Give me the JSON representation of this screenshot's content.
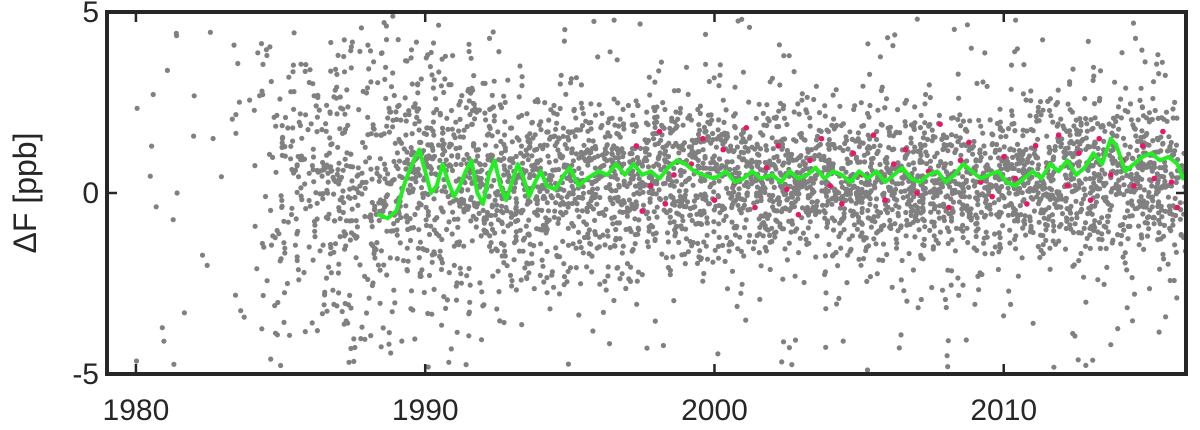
{
  "chart_data": {
    "type": "scatter",
    "title": "",
    "xlabel": "",
    "ylabel": "ΔF [ppb]",
    "xlim": [
      1979,
      2016.3
    ],
    "ylim": [
      -5,
      5
    ],
    "xticks": [
      1980,
      1990,
      2000,
      2010
    ],
    "yticks": [
      -5,
      0,
      5
    ],
    "grid": false,
    "colors": {
      "scatter": "#808080",
      "highlight": "#e8176a",
      "trend": "#22ee22",
      "frame": "#262626"
    },
    "series": [
      {
        "kind": "scatter",
        "color": "#808080",
        "note": "~3500 dense gray points; sparse 1980-1984 with wide spread (±5), dense from 1984 onward, spread narrowing to about ±2 after 1995",
        "density": [
          [
            1980,
            8
          ],
          [
            1981,
            8
          ],
          [
            1982,
            6
          ],
          [
            1983,
            10
          ],
          [
            1984,
            40
          ],
          [
            1985,
            80
          ],
          [
            1986,
            100
          ],
          [
            1987,
            110
          ],
          [
            1988,
            120
          ],
          [
            1989,
            130
          ],
          [
            1990,
            140
          ],
          [
            1991,
            140
          ],
          [
            1992,
            140
          ],
          [
            1993,
            140
          ],
          [
            1994,
            140
          ],
          [
            1995,
            140
          ],
          [
            1996,
            140
          ],
          [
            1997,
            140
          ],
          [
            1998,
            140
          ],
          [
            1999,
            140
          ],
          [
            2000,
            140
          ],
          [
            2001,
            140
          ],
          [
            2002,
            140
          ],
          [
            2003,
            140
          ],
          [
            2004,
            140
          ],
          [
            2005,
            140
          ],
          [
            2006,
            140
          ],
          [
            2007,
            140
          ],
          [
            2008,
            140
          ],
          [
            2009,
            140
          ],
          [
            2010,
            140
          ],
          [
            2011,
            140
          ],
          [
            2012,
            140
          ],
          [
            2013,
            140
          ],
          [
            2014,
            140
          ],
          [
            2015,
            140
          ],
          [
            2016,
            60
          ]
        ],
        "spread": [
          [
            1980,
            4.5
          ],
          [
            1984,
            3.2
          ],
          [
            1988,
            2.8
          ],
          [
            1991,
            2.4
          ],
          [
            1995,
            1.6
          ],
          [
            2000,
            1.5
          ],
          [
            2005,
            1.3
          ],
          [
            2010,
            1.4
          ],
          [
            2015,
            1.6
          ]
        ]
      },
      {
        "kind": "scatter",
        "color": "#e8176a",
        "points": [
          [
            1997.3,
            1.3
          ],
          [
            1997.5,
            -0.5
          ],
          [
            1997.8,
            0.2
          ],
          [
            1998.1,
            1.7
          ],
          [
            1998.3,
            -0.3
          ],
          [
            1998.6,
            0.5
          ],
          [
            1999.2,
            0.8
          ],
          [
            1999.6,
            1.5
          ],
          [
            2000.0,
            -0.2
          ],
          [
            2000.3,
            1.2
          ],
          [
            2000.7,
            0.3
          ],
          [
            2001.1,
            1.8
          ],
          [
            2001.4,
            -0.4
          ],
          [
            2001.8,
            0.7
          ],
          [
            2002.2,
            1.3
          ],
          [
            2002.5,
            0.1
          ],
          [
            2002.9,
            -0.6
          ],
          [
            2003.3,
            0.9
          ],
          [
            2003.7,
            1.5
          ],
          [
            2004.0,
            0.2
          ],
          [
            2004.4,
            -0.3
          ],
          [
            2004.8,
            1.1
          ],
          [
            2005.1,
            0.5
          ],
          [
            2005.5,
            1.6
          ],
          [
            2005.9,
            -0.2
          ],
          [
            2006.2,
            0.8
          ],
          [
            2006.6,
            1.2
          ],
          [
            2007.0,
            0.0
          ],
          [
            2007.4,
            0.6
          ],
          [
            2007.8,
            1.9
          ],
          [
            2008.1,
            -0.4
          ],
          [
            2008.5,
            0.9
          ],
          [
            2008.8,
            1.4
          ],
          [
            2009.2,
            0.3
          ],
          [
            2009.6,
            -0.1
          ],
          [
            2010.0,
            1.0
          ],
          [
            2010.4,
            0.4
          ],
          [
            2010.8,
            -0.3
          ],
          [
            2011.1,
            1.3
          ],
          [
            2011.5,
            0.7
          ],
          [
            2011.9,
            1.6
          ],
          [
            2012.2,
            0.2
          ],
          [
            2012.6,
            1.1
          ],
          [
            2013.0,
            -0.2
          ],
          [
            2013.3,
            1.5
          ],
          [
            2013.7,
            0.5
          ],
          [
            2014.1,
            0.9
          ],
          [
            2014.5,
            0.2
          ],
          [
            2014.8,
            1.3
          ],
          [
            2015.2,
            0.4
          ],
          [
            2015.5,
            1.7
          ],
          [
            2015.8,
            0.3
          ],
          [
            2016.0,
            -0.4
          ]
        ]
      },
      {
        "kind": "line",
        "color": "#22ee22",
        "points": [
          [
            1988.4,
            -0.6
          ],
          [
            1988.7,
            -0.7
          ],
          [
            1989.0,
            -0.5
          ],
          [
            1989.3,
            0.3
          ],
          [
            1989.6,
            0.9
          ],
          [
            1989.8,
            1.2
          ],
          [
            1990.0,
            0.6
          ],
          [
            1990.2,
            0.0
          ],
          [
            1990.4,
            0.2
          ],
          [
            1990.6,
            0.8
          ],
          [
            1990.8,
            0.3
          ],
          [
            1991.0,
            -0.1
          ],
          [
            1991.2,
            0.2
          ],
          [
            1991.4,
            0.6
          ],
          [
            1991.6,
            0.9
          ],
          [
            1991.8,
            0.0
          ],
          [
            1992.0,
            -0.3
          ],
          [
            1992.2,
            0.5
          ],
          [
            1992.4,
            0.9
          ],
          [
            1992.6,
            0.2
          ],
          [
            1992.8,
            -0.2
          ],
          [
            1993.0,
            0.3
          ],
          [
            1993.2,
            0.8
          ],
          [
            1993.4,
            0.4
          ],
          [
            1993.6,
            -0.1
          ],
          [
            1993.8,
            0.3
          ],
          [
            1994.0,
            0.6
          ],
          [
            1994.2,
            0.2
          ],
          [
            1994.5,
            0.1
          ],
          [
            1994.8,
            0.5
          ],
          [
            1995.0,
            0.7
          ],
          [
            1995.3,
            0.2
          ],
          [
            1995.6,
            0.4
          ],
          [
            1996.0,
            0.6
          ],
          [
            1996.3,
            0.5
          ],
          [
            1996.6,
            0.8
          ],
          [
            1996.9,
            0.5
          ],
          [
            1997.2,
            0.8
          ],
          [
            1997.5,
            0.5
          ],
          [
            1997.8,
            0.6
          ],
          [
            1998.1,
            0.4
          ],
          [
            1998.4,
            0.7
          ],
          [
            1998.7,
            0.9
          ],
          [
            1999.0,
            0.8
          ],
          [
            1999.3,
            0.6
          ],
          [
            1999.6,
            0.5
          ],
          [
            2000.0,
            0.4
          ],
          [
            2000.4,
            0.6
          ],
          [
            2000.7,
            0.3
          ],
          [
            2001.0,
            0.4
          ],
          [
            2001.3,
            0.6
          ],
          [
            2001.6,
            0.4
          ],
          [
            2002.0,
            0.5
          ],
          [
            2002.3,
            0.3
          ],
          [
            2002.6,
            0.6
          ],
          [
            2002.9,
            0.4
          ],
          [
            2003.2,
            0.5
          ],
          [
            2003.5,
            0.7
          ],
          [
            2003.8,
            0.4
          ],
          [
            2004.1,
            0.6
          ],
          [
            2004.4,
            0.5
          ],
          [
            2004.7,
            0.3
          ],
          [
            2005.0,
            0.6
          ],
          [
            2005.3,
            0.4
          ],
          [
            2005.6,
            0.6
          ],
          [
            2005.9,
            0.3
          ],
          [
            2006.2,
            0.5
          ],
          [
            2006.5,
            0.7
          ],
          [
            2006.8,
            0.4
          ],
          [
            2007.1,
            0.3
          ],
          [
            2007.4,
            0.5
          ],
          [
            2007.7,
            0.6
          ],
          [
            2008.0,
            0.3
          ],
          [
            2008.3,
            0.5
          ],
          [
            2008.6,
            0.8
          ],
          [
            2008.9,
            0.6
          ],
          [
            2009.2,
            0.4
          ],
          [
            2009.5,
            0.5
          ],
          [
            2009.8,
            0.6
          ],
          [
            2010.1,
            0.3
          ],
          [
            2010.4,
            0.2
          ],
          [
            2010.7,
            0.4
          ],
          [
            2011.0,
            0.6
          ],
          [
            2011.3,
            0.4
          ],
          [
            2011.6,
            0.8
          ],
          [
            2011.9,
            0.6
          ],
          [
            2012.2,
            0.9
          ],
          [
            2012.5,
            0.5
          ],
          [
            2012.8,
            0.7
          ],
          [
            2013.1,
            1.1
          ],
          [
            2013.4,
            0.8
          ],
          [
            2013.7,
            1.5
          ],
          [
            2013.9,
            1.3
          ],
          [
            2014.2,
            0.6
          ],
          [
            2014.5,
            0.8
          ],
          [
            2014.8,
            1.0
          ],
          [
            2015.1,
            1.1
          ],
          [
            2015.4,
            0.9
          ],
          [
            2015.7,
            1.0
          ],
          [
            2016.0,
            0.8
          ],
          [
            2016.2,
            0.4
          ]
        ]
      }
    ]
  }
}
